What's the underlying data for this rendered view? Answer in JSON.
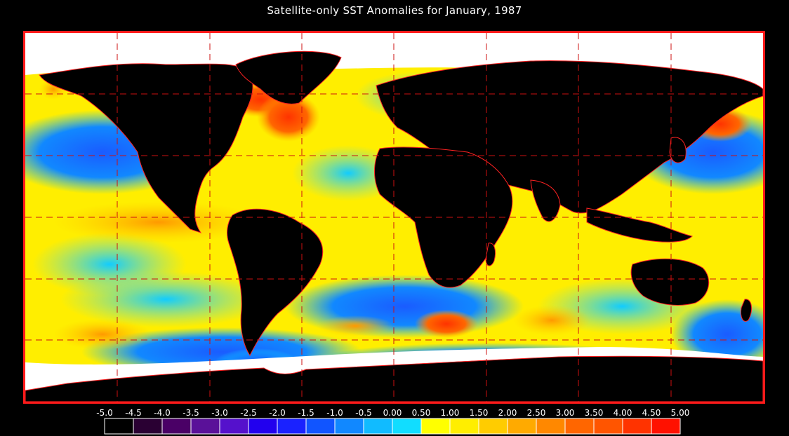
{
  "title": "Satellite-only SST Anomalies for January, 1987",
  "legend": {
    "tick_labels": [
      "-5.0",
      "-4.5",
      "-4.0",
      "-3.5",
      "-3.0",
      "-2.5",
      "-2.0",
      "-1.5",
      "-1.0",
      "-0.5",
      "0.00",
      "0.50",
      "1.00",
      "1.50",
      "2.00",
      "2.50",
      "3.00",
      "3.50",
      "4.00",
      "4.50",
      "5.00"
    ],
    "colors": [
      "#000000",
      "#2a0033",
      "#4a0066",
      "#5a1199",
      "#5511cc",
      "#2200ee",
      "#1a22ff",
      "#1155ff",
      "#1188ff",
      "#11bbff",
      "#11ddff",
      "#ffff00",
      "#ffee00",
      "#ffcc00",
      "#ffaa00",
      "#ff8800",
      "#ff6600",
      "#ff5500",
      "#ff3300",
      "#ff1100"
    ]
  },
  "map": {
    "land_color": "#000000",
    "border_color": "#ff2222",
    "graticule_color": "#cc1111",
    "ice_color": "#ffffff"
  }
}
